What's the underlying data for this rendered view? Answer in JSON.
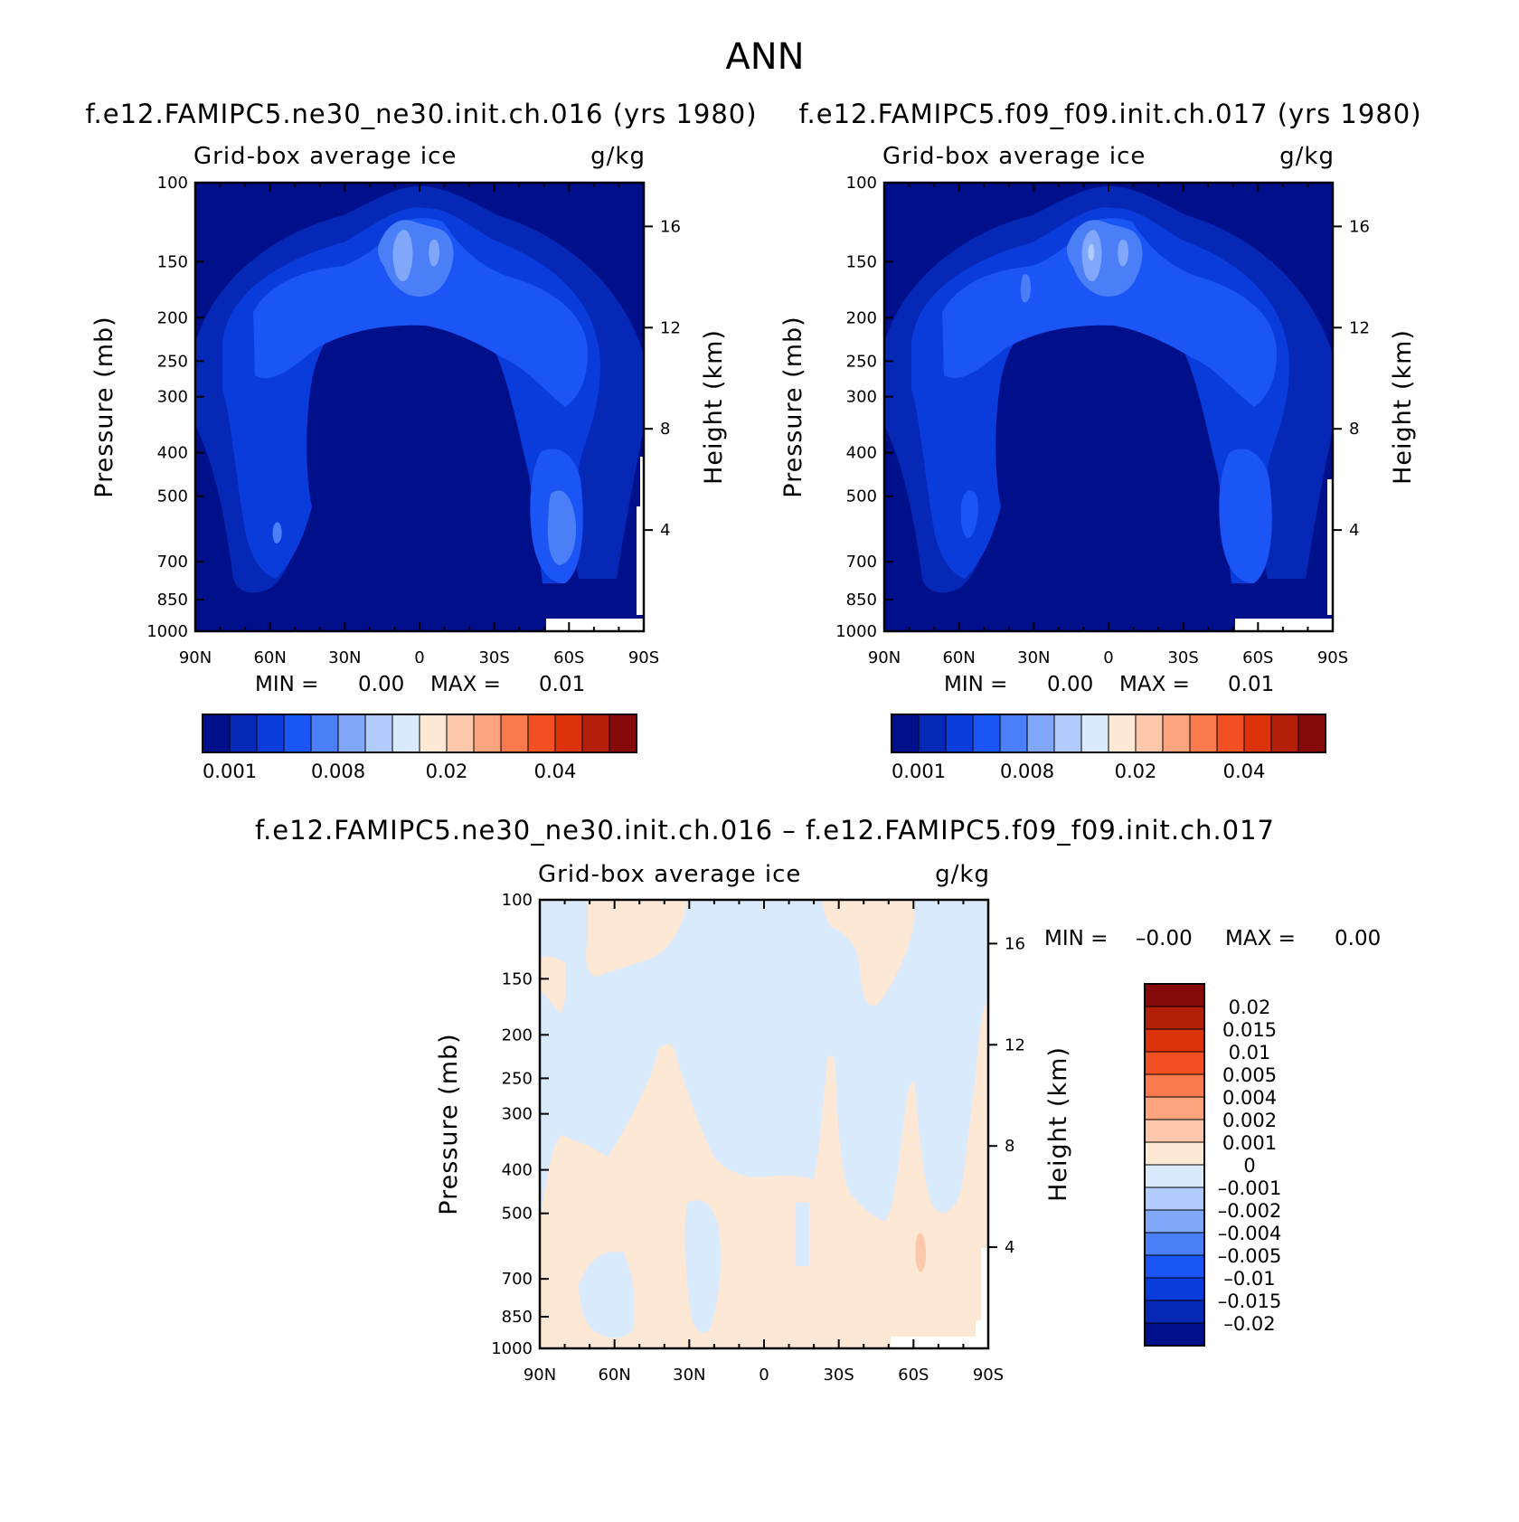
{
  "figure_title": "ANN",
  "chart_data": [
    {
      "type": "heatmap",
      "title": "f.e12.FAMIPC5.ne30_ne30.init.ch.016 (yrs 1980)",
      "variable": "Grid-box average ice",
      "units": "g/kg",
      "ylabel": "Pressure (mb)",
      "y2label": "Height (km)",
      "xticks": [
        "90N",
        "60N",
        "30N",
        "0",
        "30S",
        "60S",
        "90S"
      ],
      "yticks": [
        "100",
        "150",
        "200",
        "250",
        "300",
        "400",
        "500",
        "700",
        "850",
        "1000"
      ],
      "y2ticks": [
        "16",
        "12",
        "8",
        "4"
      ],
      "min_label": "MIN =",
      "min_value": "0.00",
      "max_label": "MAX =",
      "max_value": "0.01",
      "colorbar_labels": [
        "0.001",
        "0.008",
        "0.02",
        "0.04"
      ],
      "colors": [
        "#000f8a",
        "#0528b7",
        "#0a3cdc",
        "#1b55f5",
        "#4a7ff8",
        "#80a7fa",
        "#b0cbfc",
        "#d9eafd",
        "#fde7d5",
        "#fcc7aa",
        "#fba37c",
        "#f97a4c",
        "#f24f22",
        "#dd330a",
        "#b41f0a",
        "#870a0a"
      ]
    },
    {
      "type": "heatmap",
      "title": "f.e12.FAMIPC5.f09_f09.init.ch.017 (yrs 1980)",
      "variable": "Grid-box average ice",
      "units": "g/kg",
      "ylabel": "Pressure (mb)",
      "y2label": "Height (km)",
      "xticks": [
        "90N",
        "60N",
        "30N",
        "0",
        "30S",
        "60S",
        "90S"
      ],
      "yticks": [
        "100",
        "150",
        "200",
        "250",
        "300",
        "400",
        "500",
        "700",
        "850",
        "1000"
      ],
      "y2ticks": [
        "16",
        "12",
        "8",
        "4"
      ],
      "min_label": "MIN =",
      "min_value": "0.00",
      "max_label": "MAX =",
      "max_value": "0.01",
      "colorbar_labels": [
        "0.001",
        "0.008",
        "0.02",
        "0.04"
      ]
    },
    {
      "type": "heatmap",
      "title": "f.e12.FAMIPC5.ne30_ne30.init.ch.016 – f.e12.FAMIPC5.f09_f09.init.ch.017",
      "variable": "Grid-box average ice",
      "units": "g/kg",
      "ylabel": "Pressure (mb)",
      "y2label": "Height (km)",
      "xticks": [
        "90N",
        "60N",
        "30N",
        "0",
        "30S",
        "60S",
        "90S"
      ],
      "yticks": [
        "100",
        "150",
        "200",
        "250",
        "300",
        "400",
        "500",
        "700",
        "850",
        "1000"
      ],
      "y2ticks": [
        "16",
        "12",
        "8",
        "4"
      ],
      "min_label": "MIN =",
      "min_value": "–0.00",
      "max_label": "MAX =",
      "max_value": "0.00",
      "colorbar_labels": [
        "0.02",
        "0.015",
        "0.01",
        "0.005",
        "0.004",
        "0.002",
        "0.001",
        "0",
        "–0.001",
        "–0.002",
        "–0.004",
        "–0.005",
        "–0.01",
        "–0.015",
        "–0.02"
      ],
      "colors": [
        "#870a0a",
        "#b41f0a",
        "#dd330a",
        "#f24f22",
        "#f97a4c",
        "#fba37c",
        "#fcc7aa",
        "#fde7d5",
        "#d9eafd",
        "#b0cbfc",
        "#80a7fa",
        "#4a7ff8",
        "#1b55f5",
        "#0a3cdc",
        "#0528b7",
        "#000f8a"
      ]
    }
  ]
}
